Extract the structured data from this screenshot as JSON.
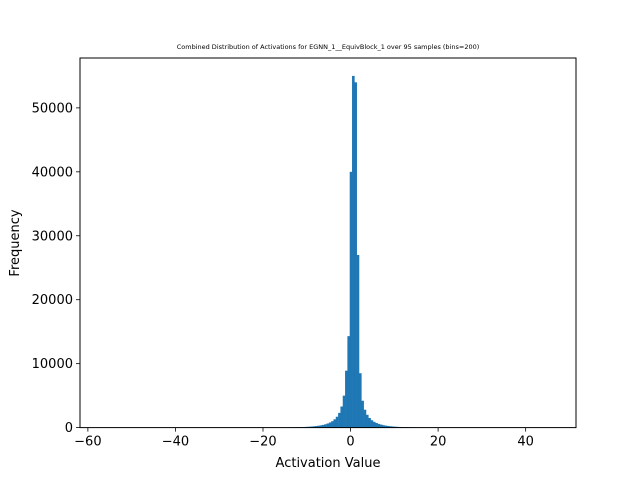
{
  "chart_data": {
    "type": "bar",
    "title": "Combined Distribution of Activations for EGNN_1__EquivBlock_1 over 95 samples  (bins=200)",
    "xlabel": "Activation Value",
    "ylabel": "Frequency",
    "xlim": [
      -61.8,
      51.5
    ],
    "ylim": [
      0,
      57800
    ],
    "xticks": [
      -60,
      -40,
      -20,
      0,
      20,
      40
    ],
    "yticks": [
      0,
      10000,
      20000,
      30000,
      40000,
      50000
    ],
    "grid": false,
    "legend": "none",
    "bar_color": "#1f77b4",
    "data_range": [
      -58.5,
      47.5
    ],
    "bins": 200,
    "bin_width": 0.53,
    "bars": [
      {
        "x": -14.5,
        "y": 20
      },
      {
        "x": -13.97,
        "y": 30
      },
      {
        "x": -13.44,
        "y": 40
      },
      {
        "x": -12.91,
        "y": 50
      },
      {
        "x": -12.38,
        "y": 60
      },
      {
        "x": -11.85,
        "y": 70
      },
      {
        "x": -11.32,
        "y": 80
      },
      {
        "x": -10.79,
        "y": 100
      },
      {
        "x": -10.26,
        "y": 120
      },
      {
        "x": -9.73,
        "y": 140
      },
      {
        "x": -9.2,
        "y": 170
      },
      {
        "x": -8.67,
        "y": 200
      },
      {
        "x": -8.14,
        "y": 240
      },
      {
        "x": -7.61,
        "y": 290
      },
      {
        "x": -7.08,
        "y": 350
      },
      {
        "x": -6.55,
        "y": 420
      },
      {
        "x": -6.02,
        "y": 520
      },
      {
        "x": -5.49,
        "y": 640
      },
      {
        "x": -4.96,
        "y": 800
      },
      {
        "x": -4.43,
        "y": 1000
      },
      {
        "x": -3.9,
        "y": 1300
      },
      {
        "x": -3.37,
        "y": 1700
      },
      {
        "x": -2.84,
        "y": 2300
      },
      {
        "x": -2.31,
        "y": 3300
      },
      {
        "x": -1.78,
        "y": 5000
      },
      {
        "x": -1.25,
        "y": 8900
      },
      {
        "x": -0.72,
        "y": 14300
      },
      {
        "x": -0.19,
        "y": 40000
      },
      {
        "x": 0.34,
        "y": 55000
      },
      {
        "x": 0.87,
        "y": 54000
      },
      {
        "x": 1.4,
        "y": 27000
      },
      {
        "x": 1.93,
        "y": 8500
      },
      {
        "x": 2.46,
        "y": 4200
      },
      {
        "x": 2.99,
        "y": 2800
      },
      {
        "x": 3.52,
        "y": 2000
      },
      {
        "x": 4.05,
        "y": 1500
      },
      {
        "x": 4.58,
        "y": 1150
      },
      {
        "x": 5.11,
        "y": 900
      },
      {
        "x": 5.64,
        "y": 720
      },
      {
        "x": 6.17,
        "y": 580
      },
      {
        "x": 6.7,
        "y": 470
      },
      {
        "x": 7.23,
        "y": 380
      },
      {
        "x": 7.76,
        "y": 310
      },
      {
        "x": 8.29,
        "y": 260
      },
      {
        "x": 8.82,
        "y": 210
      },
      {
        "x": 9.35,
        "y": 180
      },
      {
        "x": 9.88,
        "y": 150
      },
      {
        "x": 10.41,
        "y": 120
      },
      {
        "x": 10.94,
        "y": 100
      },
      {
        "x": 11.47,
        "y": 90
      },
      {
        "x": 12.0,
        "y": 80
      },
      {
        "x": 12.53,
        "y": 70
      },
      {
        "x": 13.06,
        "y": 60
      },
      {
        "x": 13.59,
        "y": 50
      },
      {
        "x": 14.12,
        "y": 40
      },
      {
        "x": 14.65,
        "y": 30
      },
      {
        "x": 15.18,
        "y": 20
      }
    ]
  }
}
